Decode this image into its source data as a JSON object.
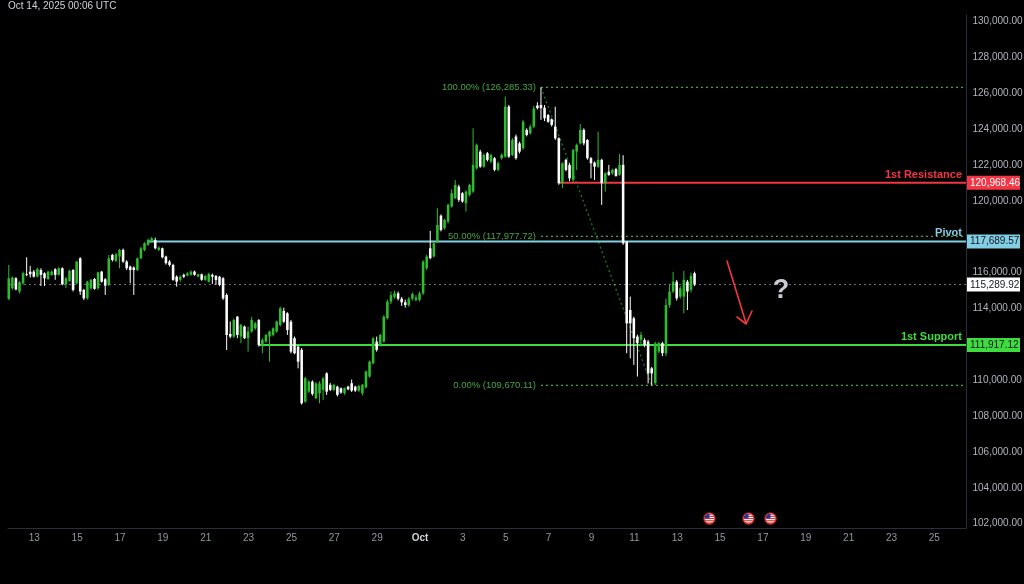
{
  "chart_data": {
    "type": "candlestick",
    "title": "Oct 14, 2025 00:06 UTC",
    "x": [
      "2025-09-11T20:00",
      "2025-09-12T00:00",
      "2025-09-12T04:00",
      "2025-09-12T08:00",
      "2025-09-12T12:00",
      "2025-09-12T16:00",
      "2025-09-12T20:00",
      "2025-09-13T00:00",
      "2025-09-13T04:00",
      "2025-09-13T08:00",
      "2025-09-13T12:00",
      "2025-09-13T16:00",
      "2025-09-13T20:00",
      "2025-09-14T00:00",
      "2025-09-14T04:00",
      "2025-09-14T08:00",
      "2025-09-14T12:00",
      "2025-09-14T16:00",
      "2025-09-14T20:00",
      "2025-09-15T00:00",
      "2025-09-15T04:00",
      "2025-09-15T08:00",
      "2025-09-15T12:00",
      "2025-09-15T16:00",
      "2025-09-15T20:00",
      "2025-09-16T00:00",
      "2025-09-16T04:00",
      "2025-09-16T08:00",
      "2025-09-16T12:00",
      "2025-09-16T16:00",
      "2025-09-16T20:00",
      "2025-09-17T00:00",
      "2025-09-17T04:00",
      "2025-09-17T08:00",
      "2025-09-17T12:00",
      "2025-09-17T16:00",
      "2025-09-17T20:00",
      "2025-09-18T00:00",
      "2025-09-18T04:00",
      "2025-09-18T08:00",
      "2025-09-18T12:00",
      "2025-09-18T16:00",
      "2025-09-18T20:00",
      "2025-09-19T00:00",
      "2025-09-19T04:00",
      "2025-09-19T08:00",
      "2025-09-19T12:00",
      "2025-09-19T16:00",
      "2025-09-19T20:00",
      "2025-09-20T00:00",
      "2025-09-20T04:00",
      "2025-09-20T08:00",
      "2025-09-20T12:00",
      "2025-09-20T16:00",
      "2025-09-20T20:00",
      "2025-09-21T00:00",
      "2025-09-21T04:00",
      "2025-09-21T08:00",
      "2025-09-21T12:00",
      "2025-09-21T16:00",
      "2025-09-21T20:00",
      "2025-09-22T00:00",
      "2025-09-22T04:00",
      "2025-09-22T08:00",
      "2025-09-22T12:00",
      "2025-09-22T16:00",
      "2025-09-22T20:00",
      "2025-09-23T00:00",
      "2025-09-23T04:00",
      "2025-09-23T08:00",
      "2025-09-23T12:00",
      "2025-09-23T16:00",
      "2025-09-23T20:00",
      "2025-09-24T00:00",
      "2025-09-24T04:00",
      "2025-09-24T08:00",
      "2025-09-24T12:00",
      "2025-09-24T16:00",
      "2025-09-24T20:00",
      "2025-09-25T00:00",
      "2025-09-25T04:00",
      "2025-09-25T08:00",
      "2025-09-25T12:00",
      "2025-09-25T16:00",
      "2025-09-25T20:00",
      "2025-09-26T00:00",
      "2025-09-26T04:00",
      "2025-09-26T08:00",
      "2025-09-26T12:00",
      "2025-09-26T16:00",
      "2025-09-26T20:00",
      "2025-09-27T00:00",
      "2025-09-27T04:00",
      "2025-09-27T08:00",
      "2025-09-27T12:00",
      "2025-09-27T16:00",
      "2025-09-27T20:00",
      "2025-09-28T00:00",
      "2025-09-28T04:00",
      "2025-09-28T08:00",
      "2025-09-28T12:00",
      "2025-09-28T16:00",
      "2025-09-28T20:00",
      "2025-09-29T00:00",
      "2025-09-29T04:00",
      "2025-09-29T08:00",
      "2025-09-29T12:00",
      "2025-09-29T16:00",
      "2025-09-29T20:00",
      "2025-09-30T00:00",
      "2025-09-30T04:00",
      "2025-09-30T08:00",
      "2025-09-30T12:00",
      "2025-09-30T16:00",
      "2025-09-30T20:00",
      "2025-10-01T00:00",
      "2025-10-01T04:00",
      "2025-10-01T08:00",
      "2025-10-01T12:00",
      "2025-10-01T16:00",
      "2025-10-01T20:00",
      "2025-10-02T00:00",
      "2025-10-02T04:00",
      "2025-10-02T08:00",
      "2025-10-02T12:00",
      "2025-10-02T16:00",
      "2025-10-02T20:00",
      "2025-10-03T00:00",
      "2025-10-03T04:00",
      "2025-10-03T08:00",
      "2025-10-03T12:00",
      "2025-10-03T16:00",
      "2025-10-03T20:00",
      "2025-10-04T00:00",
      "2025-10-04T04:00",
      "2025-10-04T08:00",
      "2025-10-04T12:00",
      "2025-10-04T16:00",
      "2025-10-04T20:00",
      "2025-10-05T00:00",
      "2025-10-05T04:00",
      "2025-10-05T08:00",
      "2025-10-05T12:00",
      "2025-10-05T16:00",
      "2025-10-05T20:00",
      "2025-10-06T00:00",
      "2025-10-06T04:00",
      "2025-10-06T08:00",
      "2025-10-06T12:00",
      "2025-10-06T16:00",
      "2025-10-06T20:00",
      "2025-10-07T00:00",
      "2025-10-07T04:00",
      "2025-10-07T08:00",
      "2025-10-07T12:00",
      "2025-10-07T16:00",
      "2025-10-07T20:00",
      "2025-10-08T00:00",
      "2025-10-08T04:00",
      "2025-10-08T08:00",
      "2025-10-08T12:00",
      "2025-10-08T16:00",
      "2025-10-08T20:00",
      "2025-10-09T00:00",
      "2025-10-09T04:00",
      "2025-10-09T08:00",
      "2025-10-09T12:00",
      "2025-10-09T16:00",
      "2025-10-09T20:00",
      "2025-10-10T00:00",
      "2025-10-10T04:00",
      "2025-10-10T08:00",
      "2025-10-10T12:00",
      "2025-10-10T16:00",
      "2025-10-10T20:00",
      "2025-10-11T00:00",
      "2025-10-11T04:00",
      "2025-10-11T08:00",
      "2025-10-11T12:00",
      "2025-10-11T16:00",
      "2025-10-11T20:00",
      "2025-10-12T00:00",
      "2025-10-12T04:00",
      "2025-10-12T08:00",
      "2025-10-12T12:00",
      "2025-10-12T16:00",
      "2025-10-12T20:00",
      "2025-10-13T00:00",
      "2025-10-13T04:00",
      "2025-10-13T08:00",
      "2025-10-13T12:00",
      "2025-10-13T16:00",
      "2025-10-13T20:00"
    ],
    "ohlc": [
      [
        114490,
        116380,
        114430,
        115640
      ],
      [
        115080,
        115740,
        115000,
        115680
      ],
      [
        115640,
        115700,
        114970,
        115020
      ],
      [
        114900,
        115480,
        114800,
        115420
      ],
      [
        115360,
        116010,
        115270,
        115920
      ],
      [
        115880,
        116810,
        115750,
        115830
      ],
      [
        116010,
        116330,
        115680,
        115860
      ],
      [
        116010,
        116100,
        115680,
        115730
      ],
      [
        115730,
        116230,
        115700,
        116160
      ],
      [
        116100,
        116200,
        115210,
        115830
      ],
      [
        115920,
        115970,
        115210,
        115640
      ],
      [
        115600,
        116050,
        115550,
        116010
      ],
      [
        115830,
        116080,
        115790,
        116010
      ],
      [
        116140,
        116200,
        115550,
        115830
      ],
      [
        115830,
        116250,
        115790,
        116200
      ],
      [
        116200,
        116250,
        115250,
        115300
      ],
      [
        115300,
        115700,
        115100,
        115640
      ],
      [
        115490,
        116120,
        115450,
        116050
      ],
      [
        116100,
        116150,
        114900,
        114990
      ],
      [
        115360,
        116600,
        115300,
        116570
      ],
      [
        116750,
        116810,
        114710,
        114900
      ],
      [
        114990,
        115050,
        114430,
        114520
      ],
      [
        114520,
        115500,
        114450,
        115450
      ],
      [
        115080,
        115600,
        115000,
        115550
      ],
      [
        115600,
        115650,
        115000,
        115050
      ],
      [
        115080,
        116000,
        115000,
        115970
      ],
      [
        116010,
        116050,
        115400,
        115450
      ],
      [
        115580,
        115650,
        114710,
        115230
      ],
      [
        115270,
        116940,
        115200,
        116750
      ],
      [
        116940,
        117000,
        116570,
        116660
      ],
      [
        116600,
        117050,
        116550,
        116980
      ],
      [
        116850,
        117280,
        116200,
        117220
      ],
      [
        117220,
        117300,
        116500,
        116570
      ],
      [
        116570,
        116650,
        116100,
        116200
      ],
      [
        116290,
        116350,
        115360,
        116100
      ],
      [
        116240,
        116300,
        114710,
        116100
      ],
      [
        116100,
        116800,
        116050,
        116750
      ],
      [
        116750,
        117380,
        116700,
        117310
      ],
      [
        117220,
        117650,
        117150,
        117590
      ],
      [
        117500,
        117850,
        117450,
        117780
      ],
      [
        117680,
        117930,
        117600,
        117870
      ],
      [
        117780,
        117900,
        117250,
        117310
      ],
      [
        117220,
        117420,
        117150,
        117350
      ],
      [
        117310,
        117350,
        116750,
        116810
      ],
      [
        116850,
        116900,
        116400,
        116480
      ],
      [
        116570,
        116650,
        116300,
        116380
      ],
      [
        116380,
        116450,
        115500,
        115550
      ],
      [
        115730,
        115800,
        115170,
        115450
      ],
      [
        115550,
        115800,
        115450,
        115730
      ],
      [
        115830,
        115900,
        115650,
        115730
      ],
      [
        115790,
        115980,
        115750,
        115920
      ],
      [
        115830,
        116080,
        115780,
        116010
      ],
      [
        116010,
        116070,
        115780,
        115830
      ],
      [
        115730,
        115900,
        115700,
        115860
      ],
      [
        115860,
        115900,
        115500,
        115560
      ],
      [
        115550,
        115820,
        115500,
        115770
      ],
      [
        115450,
        115950,
        115400,
        115880
      ],
      [
        115830,
        115900,
        115320,
        115730
      ],
      [
        115770,
        115820,
        115270,
        115550
      ],
      [
        115730,
        115770,
        115200,
        115270
      ],
      [
        115640,
        115700,
        114430,
        114520
      ],
      [
        114710,
        114800,
        111640,
        112480
      ],
      [
        112540,
        113230,
        112300,
        112390
      ],
      [
        112390,
        113400,
        112300,
        113320
      ],
      [
        113500,
        113540,
        112300,
        112480
      ],
      [
        112390,
        113100,
        112020,
        113040
      ],
      [
        112950,
        113000,
        112250,
        112300
      ],
      [
        112300,
        112950,
        111550,
        112670
      ],
      [
        112670,
        113500,
        112600,
        113320
      ],
      [
        112850,
        113220,
        112760,
        113130
      ],
      [
        113320,
        113360,
        111830,
        111920
      ],
      [
        111920,
        112300,
        111460,
        112200
      ],
      [
        112110,
        112550,
        112050,
        112480
      ],
      [
        112390,
        112720,
        110990,
        112670
      ],
      [
        112480,
        112900,
        112400,
        112850
      ],
      [
        112670,
        113280,
        112600,
        113220
      ],
      [
        113040,
        114050,
        112950,
        113970
      ],
      [
        113820,
        114000,
        113150,
        113220
      ],
      [
        113690,
        113750,
        112480,
        112760
      ],
      [
        113220,
        113320,
        111450,
        111550
      ],
      [
        112300,
        112390,
        111400,
        111460
      ],
      [
        111830,
        111900,
        110620,
        110990
      ],
      [
        111650,
        111750,
        108600,
        108670
      ],
      [
        108760,
        110150,
        108700,
        110070
      ],
      [
        109320,
        109950,
        109250,
        109880
      ],
      [
        109880,
        109950,
        109100,
        109190
      ],
      [
        108950,
        109850,
        108900,
        109780
      ],
      [
        109230,
        109900,
        108670,
        109780
      ],
      [
        109420,
        110150,
        108860,
        110060
      ],
      [
        110340,
        110400,
        109140,
        109320
      ],
      [
        109700,
        109800,
        109350,
        109420
      ],
      [
        109420,
        109750,
        109350,
        109700
      ],
      [
        109600,
        109650,
        109050,
        109140
      ],
      [
        109510,
        109550,
        109200,
        109270
      ],
      [
        109230,
        109550,
        109150,
        109510
      ],
      [
        109600,
        109650,
        109400,
        109450
      ],
      [
        109790,
        110000,
        109300,
        109380
      ],
      [
        109600,
        109650,
        109300,
        109380
      ],
      [
        109380,
        109700,
        109300,
        109640
      ],
      [
        109230,
        109750,
        109100,
        109700
      ],
      [
        109560,
        110500,
        109500,
        110440
      ],
      [
        110160,
        111050,
        110100,
        110990
      ],
      [
        110900,
        112370,
        110850,
        112290
      ],
      [
        112110,
        112390,
        111550,
        111650
      ],
      [
        111920,
        112550,
        111850,
        112480
      ],
      [
        112110,
        113580,
        112050,
        113500
      ],
      [
        113410,
        114450,
        113350,
        114340
      ],
      [
        114340,
        114900,
        114200,
        114700
      ],
      [
        114600,
        114950,
        114500,
        114800
      ],
      [
        114800,
        114900,
        114400,
        114500
      ],
      [
        114500,
        114600,
        114100,
        114300
      ],
      [
        114300,
        114450,
        114000,
        114150
      ],
      [
        114150,
        114600,
        114050,
        114500
      ],
      [
        114500,
        114850,
        114400,
        114760
      ],
      [
        114440,
        114700,
        114350,
        114560
      ],
      [
        114440,
        114900,
        114350,
        114800
      ],
      [
        114800,
        116650,
        114700,
        116570
      ],
      [
        116200,
        116950,
        116100,
        116850
      ],
      [
        117310,
        118280,
        116700,
        116760
      ],
      [
        116850,
        117650,
        116800,
        117590
      ],
      [
        117680,
        119540,
        117600,
        118610
      ],
      [
        119130,
        119200,
        118250,
        118330
      ],
      [
        118430,
        118950,
        118350,
        118890
      ],
      [
        118800,
        119800,
        118700,
        119730
      ],
      [
        119640,
        120600,
        119580,
        120380
      ],
      [
        120100,
        121120,
        120050,
        120840
      ],
      [
        120750,
        120850,
        119900,
        120010
      ],
      [
        120380,
        120450,
        119850,
        119920
      ],
      [
        119820,
        120550,
        119350,
        120470
      ],
      [
        120290,
        120900,
        120200,
        120840
      ],
      [
        120470,
        124000,
        120400,
        121960
      ],
      [
        121770,
        123150,
        121700,
        123070
      ],
      [
        122700,
        122800,
        121800,
        121860
      ],
      [
        121860,
        122600,
        121800,
        122510
      ],
      [
        122610,
        122680,
        122150,
        122240
      ],
      [
        122140,
        122580,
        122050,
        122510
      ],
      [
        122330,
        122400,
        121600,
        121680
      ],
      [
        121680,
        122150,
        121600,
        122050
      ],
      [
        122330,
        122600,
        122250,
        122520
      ],
      [
        122420,
        125770,
        122350,
        125210
      ],
      [
        125210,
        125300,
        122350,
        122420
      ],
      [
        122510,
        123450,
        122450,
        123350
      ],
      [
        123540,
        123650,
        122250,
        122330
      ],
      [
        123160,
        123250,
        122600,
        122700
      ],
      [
        122890,
        124450,
        122800,
        124370
      ],
      [
        123910,
        124000,
        123550,
        123630
      ],
      [
        123720,
        124200,
        123650,
        124090
      ],
      [
        124090,
        125250,
        124000,
        125100
      ],
      [
        125270,
        125450,
        125050,
        125120
      ],
      [
        125300,
        126285,
        124470,
        125120
      ],
      [
        125150,
        125300,
        124400,
        124560
      ],
      [
        124740,
        124800,
        124300,
        124370
      ],
      [
        124500,
        124550,
        124100,
        124190
      ],
      [
        124090,
        125200,
        123350,
        123440
      ],
      [
        123440,
        123500,
        120850,
        120940
      ],
      [
        120940,
        122100,
        120660,
        122050
      ],
      [
        122240,
        122300,
        121600,
        121680
      ],
      [
        121960,
        122050,
        121050,
        121210
      ],
      [
        121120,
        122850,
        121000,
        122790
      ],
      [
        122700,
        123150,
        121680,
        123070
      ],
      [
        123160,
        124240,
        123100,
        123910
      ],
      [
        123910,
        124000,
        123050,
        123160
      ],
      [
        123350,
        123400,
        122250,
        122330
      ],
      [
        122330,
        122400,
        121210,
        122050
      ],
      [
        122090,
        122150,
        121120,
        121860
      ],
      [
        121860,
        123810,
        121800,
        122240
      ],
      [
        122240,
        122300,
        119730,
        120940
      ],
      [
        120940,
        121550,
        120470,
        121490
      ],
      [
        121580,
        121960,
        121350,
        121400
      ],
      [
        121490,
        121750,
        121400,
        121680
      ],
      [
        121720,
        121800,
        121300,
        121340
      ],
      [
        121400,
        122570,
        121350,
        121960
      ],
      [
        121960,
        122500,
        117500,
        117590
      ],
      [
        117680,
        117700,
        111460,
        113130
      ],
      [
        113870,
        114620,
        111180,
        113130
      ],
      [
        113410,
        113500,
        110810,
        112300
      ],
      [
        112390,
        112500,
        110160,
        112020
      ],
      [
        112210,
        112650,
        111900,
        112480
      ],
      [
        112200,
        112300,
        111800,
        111920
      ],
      [
        112110,
        112200,
        109780,
        110340
      ],
      [
        110620,
        110700,
        109670,
        110340
      ],
      [
        109790,
        112100,
        109690,
        112010
      ],
      [
        111550,
        112100,
        111450,
        112020
      ],
      [
        112020,
        112100,
        111300,
        111460
      ],
      [
        111460,
        114500,
        111300,
        114150
      ],
      [
        114150,
        115300,
        114000,
        114900
      ],
      [
        114900,
        116000,
        114800,
        115450
      ],
      [
        115450,
        115550,
        114400,
        114520
      ],
      [
        114620,
        115200,
        114500,
        115080
      ],
      [
        114620,
        116050,
        113690,
        115550
      ],
      [
        115450,
        115550,
        113870,
        114900
      ],
      [
        114990,
        115950,
        114850,
        115770
      ],
      [
        115920,
        116010,
        115200,
        115290
      ]
    ],
    "colors": [
      "#2ebd2e",
      "#2ebd2e",
      "#ffffff",
      "#2ebd2e",
      "#2ebd2e",
      "#ffffff",
      "#ffffff",
      "#ffffff",
      "#2ebd2e",
      "#ffffff",
      "#ffffff",
      "#2ebd2e",
      "#2ebd2e",
      "#ffffff",
      "#2ebd2e",
      "#ffffff",
      "#2ebd2e",
      "#2ebd2e",
      "#ffffff",
      "#2ebd2e",
      "#ffffff",
      "#ffffff",
      "#2ebd2e",
      "#2ebd2e",
      "#ffffff",
      "#2ebd2e",
      "#ffffff",
      "#ffffff",
      "#2ebd2e",
      "#ffffff",
      "#2ebd2e",
      "#2ebd2e",
      "#ffffff",
      "#ffffff",
      "#ffffff",
      "#ffffff",
      "#2ebd2e",
      "#2ebd2e",
      "#2ebd2e",
      "#2ebd2e",
      "#2ebd2e",
      "#ffffff",
      "#2ebd2e",
      "#ffffff",
      "#ffffff",
      "#ffffff",
      "#ffffff",
      "#ffffff",
      "#2ebd2e",
      "#ffffff",
      "#2ebd2e",
      "#2ebd2e",
      "#ffffff",
      "#2ebd2e",
      "#ffffff",
      "#2ebd2e",
      "#2ebd2e",
      "#ffffff",
      "#ffffff",
      "#ffffff",
      "#ffffff",
      "#ffffff",
      "#ffffff",
      "#2ebd2e",
      "#ffffff",
      "#2ebd2e",
      "#ffffff",
      "#2ebd2e",
      "#2ebd2e",
      "#2ebd2e",
      "#ffffff",
      "#2ebd2e",
      "#2ebd2e",
      "#2ebd2e",
      "#2ebd2e",
      "#2ebd2e",
      "#2ebd2e",
      "#ffffff",
      "#ffffff",
      "#ffffff",
      "#ffffff",
      "#ffffff",
      "#ffffff",
      "#2ebd2e",
      "#2ebd2e",
      "#ffffff",
      "#2ebd2e",
      "#2ebd2e",
      "#2ebd2e",
      "#ffffff",
      "#ffffff",
      "#2ebd2e",
      "#ffffff",
      "#ffffff",
      "#2ebd2e",
      "#ffffff",
      "#ffffff",
      "#ffffff",
      "#2ebd2e",
      "#2ebd2e",
      "#2ebd2e",
      "#2ebd2e",
      "#2ebd2e",
      "#ffffff",
      "#2ebd2e",
      "#2ebd2e",
      "#2ebd2e",
      "#2ebd2e",
      "#2ebd2e",
      "#ffffff",
      "#ffffff",
      "#ffffff",
      "#2ebd2e",
      "#2ebd2e",
      "#2ebd2e",
      "#2ebd2e",
      "#2ebd2e",
      "#2ebd2e",
      "#ffffff",
      "#2ebd2e",
      "#2ebd2e",
      "#ffffff",
      "#2ebd2e",
      "#2ebd2e",
      "#2ebd2e",
      "#2ebd2e",
      "#ffffff",
      "#ffffff",
      "#2ebd2e",
      "#2ebd2e",
      "#2ebd2e",
      "#2ebd2e",
      "#ffffff",
      "#2ebd2e",
      "#ffffff",
      "#2ebd2e",
      "#ffffff",
      "#2ebd2e",
      "#2ebd2e",
      "#2ebd2e",
      "#ffffff",
      "#2ebd2e",
      "#ffffff",
      "#ffffff",
      "#2ebd2e",
      "#ffffff",
      "#2ebd2e",
      "#2ebd2e",
      "#ffffff",
      "#ffffff",
      "#ffffff",
      "#ffffff",
      "#ffffff",
      "#ffffff",
      "#ffffff",
      "#2ebd2e",
      "#ffffff",
      "#ffffff",
      "#2ebd2e",
      "#2ebd2e",
      "#2ebd2e",
      "#ffffff",
      "#ffffff",
      "#ffffff",
      "#ffffff",
      "#2ebd2e",
      "#ffffff",
      "#2ebd2e",
      "#ffffff",
      "#2ebd2e",
      "#ffffff",
      "#2ebd2e",
      "#ffffff",
      "#ffffff",
      "#ffffff",
      "#ffffff",
      "#ffffff",
      "#2ebd2e",
      "#ffffff",
      "#ffffff",
      "#ffffff",
      "#2ebd2e",
      "#2ebd2e",
      "#ffffff",
      "#2ebd2e",
      "#2ebd2e",
      "#2ebd2e",
      "#ffffff",
      "#2ebd2e",
      "#2ebd2e",
      "#ffffff",
      "#2ebd2e",
      "#ffffff"
    ],
    "series": [
      {
        "type": "line",
        "x": [
          "2025-10-06T16:00",
          "2025-10-26T12:00"
        ],
        "values": [
          126285.33,
          126285.33
        ],
        "color": "#43a843",
        "line_style": "dotted"
      },
      {
        "type": "line",
        "x": [
          "2025-10-06T16:00",
          "2025-10-26T12:00"
        ],
        "values": [
          117977.72,
          117977.72
        ],
        "color": "#43a843",
        "line_style": "dotted"
      },
      {
        "type": "line",
        "x": [
          "2025-10-06T16:00",
          "2025-10-26T12:00"
        ],
        "values": [
          109670.11,
          109670.11
        ],
        "color": "#43a843",
        "line_style": "dotted"
      },
      {
        "type": "line",
        "x": [
          "2025-10-06T16:00",
          "2025-10-11T20:00"
        ],
        "values": [
          126285.33,
          109670.11
        ],
        "color": "#1f7a1f",
        "line_style": "dotted"
      },
      {
        "type": "line",
        "name": "1st Resistance",
        "x": [
          "2025-10-07T12:00",
          "2025-10-26T12:00"
        ],
        "values": [
          120968.46,
          120968.46
        ],
        "color": "#f23645",
        "value_labels": [
          null,
          "120,968.46"
        ]
      },
      {
        "type": "line",
        "name": "Pivot",
        "x": [
          "2025-09-18T08:00",
          "2025-10-26T12:00"
        ],
        "values": [
          117689.57,
          117689.57
        ],
        "color": "#82cfe3",
        "value_labels": [
          null,
          "117,689.57"
        ]
      },
      {
        "type": "line",
        "name": "1st Support",
        "x": [
          "2025-09-23T12:00",
          "2025-10-26T12:00"
        ],
        "values": [
          111917.12,
          111917.12
        ],
        "color": "#3fdc3f",
        "value_labels": [
          null,
          "111,917.12"
        ]
      }
    ],
    "ref_lines": [
      {
        "axis": "y",
        "value": 115289.92,
        "label": "115,289.92",
        "color": "#ffffff",
        "line_style": "dotted"
      }
    ],
    "annotations": [
      {
        "text": "100.00% (126,285.33)",
        "x": "2025-10-06T16:00",
        "y": 126285.33
      },
      {
        "text": "50.00% (117,977.72)",
        "x": "2025-10-06T16:00",
        "y": 117977.72
      },
      {
        "text": "0.00% (109,670.11)",
        "x": "2025-10-06T16:00",
        "y": 109670.11
      },
      "?"
    ],
    "xlim": [
      "2025-09-11T18:00",
      "2025-10-26T12:00"
    ],
    "xticks": [
      {
        "value": "2025-09-13",
        "label": "13"
      },
      {
        "value": "2025-09-15",
        "label": "15"
      },
      {
        "value": "2025-09-17",
        "label": "17"
      },
      {
        "value": "2025-09-19",
        "label": "19"
      },
      {
        "value": "2025-09-21",
        "label": "21"
      },
      {
        "value": "2025-09-23",
        "label": "23"
      },
      {
        "value": "2025-09-25",
        "label": "25"
      },
      {
        "value": "2025-09-27",
        "label": "27"
      },
      {
        "value": "2025-09-29",
        "label": "29"
      },
      {
        "value": "2025-10-01",
        "label": "Oct"
      },
      {
        "value": "2025-10-03",
        "label": "3"
      },
      {
        "value": "2025-10-05",
        "label": "5"
      },
      {
        "value": "2025-10-07",
        "label": "7"
      },
      {
        "value": "2025-10-09",
        "label": "9"
      },
      {
        "value": "2025-10-11",
        "label": "11"
      },
      {
        "value": "2025-10-13",
        "label": "13"
      },
      {
        "value": "2025-10-15",
        "label": "15"
      },
      {
        "value": "2025-10-17",
        "label": "17"
      },
      {
        "value": "2025-10-19",
        "label": "19"
      },
      {
        "value": "2025-10-21",
        "label": "21"
      },
      {
        "value": "2025-10-23",
        "label": "23"
      },
      {
        "value": "2025-10-25",
        "label": "25"
      }
    ],
    "ylim": [
      101720,
      130370
    ],
    "yticks": [
      {
        "value": 102000,
        "label": "102,000.00"
      },
      {
        "value": 104000,
        "label": "104,000.00"
      },
      {
        "value": 106000,
        "label": "106,000.00"
      },
      {
        "value": 108000,
        "label": "108,000.00"
      },
      {
        "value": 110000,
        "label": "110,000.00"
      },
      {
        "value": 114000,
        "label": "114,000.00"
      },
      {
        "value": 116000,
        "label": "116,000.00"
      },
      {
        "value": 120000,
        "label": "120,000.00"
      },
      {
        "value": 122000,
        "label": "122,000.00"
      },
      {
        "value": 124000,
        "label": "124,000.00"
      },
      {
        "value": 126000,
        "label": "126,000.00"
      },
      {
        "value": 128000,
        "label": "128,000.00"
      },
      {
        "value": 130000,
        "label": "130,000.00"
      }
    ]
  }
}
